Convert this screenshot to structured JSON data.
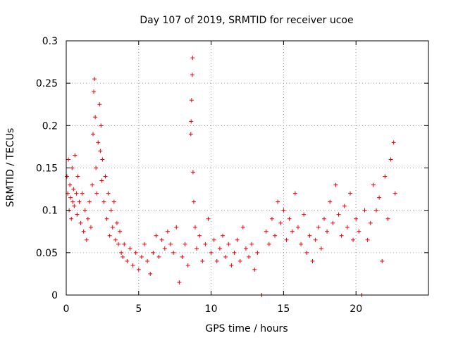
{
  "chart_data": {
    "type": "scatter",
    "title": "Day 107 of 2019, SRMTID for receiver ucoe",
    "xlabel": "GPS time / hours",
    "ylabel": "SRMTID / TECUs",
    "xlim": [
      0,
      25
    ],
    "ylim": [
      0,
      0.3
    ],
    "x_ticks": [
      0,
      5,
      10,
      15,
      20
    ],
    "x_tick_labels": [
      "0",
      "5",
      "10",
      "15",
      "20"
    ],
    "y_ticks": [
      0,
      0.05,
      0.1,
      0.15,
      0.2,
      0.25,
      0.3
    ],
    "y_tick_labels": [
      "0",
      "0.05",
      "0.1",
      "0.15",
      "0.2",
      "0.25",
      "0.3"
    ],
    "grid": true,
    "marker": "+",
    "color": "#e8000b",
    "series": [
      {
        "name": "SRMTID",
        "points": [
          [
            0.05,
            0.14
          ],
          [
            0.1,
            0.12
          ],
          [
            0.15,
            0.16
          ],
          [
            0.2,
            0.1
          ],
          [
            0.25,
            0.13
          ],
          [
            0.3,
            0.115
          ],
          [
            0.35,
            0.09
          ],
          [
            0.4,
            0.15
          ],
          [
            0.45,
            0.11
          ],
          [
            0.5,
            0.125
          ],
          [
            0.55,
            0.105
          ],
          [
            0.6,
            0.165
          ],
          [
            0.7,
            0.12
          ],
          [
            0.75,
            0.095
          ],
          [
            0.8,
            0.14
          ],
          [
            0.9,
            0.11
          ],
          [
            1.0,
            0.085
          ],
          [
            1.1,
            0.12
          ],
          [
            1.2,
            0.075
          ],
          [
            1.3,
            0.1
          ],
          [
            1.4,
            0.065
          ],
          [
            1.5,
            0.09
          ],
          [
            1.6,
            0.11
          ],
          [
            1.7,
            0.08
          ],
          [
            1.8,
            0.13
          ],
          [
            1.85,
            0.19
          ],
          [
            1.9,
            0.24
          ],
          [
            1.95,
            0.255
          ],
          [
            2.0,
            0.21
          ],
          [
            2.05,
            0.15
          ],
          [
            2.1,
            0.12
          ],
          [
            2.2,
            0.18
          ],
          [
            2.3,
            0.225
          ],
          [
            2.35,
            0.17
          ],
          [
            2.4,
            0.2
          ],
          [
            2.45,
            0.135
          ],
          [
            2.5,
            0.16
          ],
          [
            2.6,
            0.11
          ],
          [
            2.7,
            0.14
          ],
          [
            2.8,
            0.09
          ],
          [
            2.9,
            0.12
          ],
          [
            3.0,
            0.07
          ],
          [
            3.1,
            0.1
          ],
          [
            3.2,
            0.08
          ],
          [
            3.3,
            0.11
          ],
          [
            3.4,
            0.065
          ],
          [
            3.5,
            0.085
          ],
          [
            3.6,
            0.06
          ],
          [
            3.7,
            0.075
          ],
          [
            3.8,
            0.05
          ],
          [
            3.9,
            0.045
          ],
          [
            4.0,
            0.06
          ],
          [
            4.2,
            0.04
          ],
          [
            4.4,
            0.055
          ],
          [
            4.6,
            0.035
          ],
          [
            4.8,
            0.05
          ],
          [
            5.0,
            0.03
          ],
          [
            5.2,
            0.045
          ],
          [
            5.4,
            0.06
          ],
          [
            5.6,
            0.04
          ],
          [
            5.8,
            0.025
          ],
          [
            6.0,
            0.05
          ],
          [
            6.2,
            0.07
          ],
          [
            6.4,
            0.045
          ],
          [
            6.6,
            0.065
          ],
          [
            6.8,
            0.055
          ],
          [
            7.0,
            0.075
          ],
          [
            7.2,
            0.06
          ],
          [
            7.4,
            0.05
          ],
          [
            7.6,
            0.08
          ],
          [
            7.8,
            0.015
          ],
          [
            8.0,
            0.045
          ],
          [
            8.2,
            0.06
          ],
          [
            8.4,
            0.035
          ],
          [
            8.6,
            0.19
          ],
          [
            8.62,
            0.205
          ],
          [
            8.65,
            0.23
          ],
          [
            8.7,
            0.26
          ],
          [
            8.72,
            0.28
          ],
          [
            8.75,
            0.145
          ],
          [
            8.8,
            0.11
          ],
          [
            8.9,
            0.08
          ],
          [
            9.0,
            0.055
          ],
          [
            9.2,
            0.07
          ],
          [
            9.4,
            0.04
          ],
          [
            9.6,
            0.06
          ],
          [
            9.8,
            0.09
          ],
          [
            10.0,
            0.05
          ],
          [
            10.2,
            0.065
          ],
          [
            10.4,
            0.04
          ],
          [
            10.6,
            0.055
          ],
          [
            10.8,
            0.07
          ],
          [
            11.0,
            0.045
          ],
          [
            11.2,
            0.06
          ],
          [
            11.4,
            0.035
          ],
          [
            11.6,
            0.05
          ],
          [
            11.8,
            0.065
          ],
          [
            12.0,
            0.04
          ],
          [
            12.2,
            0.08
          ],
          [
            12.4,
            0.055
          ],
          [
            12.6,
            0.045
          ],
          [
            12.8,
            0.06
          ],
          [
            13.0,
            0.03
          ],
          [
            13.2,
            0.05
          ],
          [
            13.5,
            0.0
          ],
          [
            13.8,
            0.075
          ],
          [
            14.0,
            0.06
          ],
          [
            14.2,
            0.09
          ],
          [
            14.4,
            0.07
          ],
          [
            14.6,
            0.11
          ],
          [
            14.8,
            0.085
          ],
          [
            15.0,
            0.1
          ],
          [
            15.2,
            0.065
          ],
          [
            15.4,
            0.09
          ],
          [
            15.6,
            0.075
          ],
          [
            15.8,
            0.12
          ],
          [
            16.0,
            0.08
          ],
          [
            16.2,
            0.06
          ],
          [
            16.4,
            0.095
          ],
          [
            16.6,
            0.05
          ],
          [
            16.8,
            0.07
          ],
          [
            17.0,
            0.04
          ],
          [
            17.2,
            0.065
          ],
          [
            17.4,
            0.08
          ],
          [
            17.6,
            0.055
          ],
          [
            17.8,
            0.09
          ],
          [
            18.0,
            0.075
          ],
          [
            18.2,
            0.11
          ],
          [
            18.4,
            0.085
          ],
          [
            18.6,
            0.13
          ],
          [
            18.8,
            0.095
          ],
          [
            19.0,
            0.07
          ],
          [
            19.2,
            0.105
          ],
          [
            19.4,
            0.08
          ],
          [
            19.6,
            0.12
          ],
          [
            19.8,
            0.065
          ],
          [
            20.0,
            0.09
          ],
          [
            20.2,
            0.075
          ],
          [
            20.4,
            0.0
          ],
          [
            20.6,
            0.1
          ],
          [
            20.8,
            0.065
          ],
          [
            21.0,
            0.085
          ],
          [
            21.2,
            0.13
          ],
          [
            21.4,
            0.1
          ],
          [
            21.6,
            0.115
          ],
          [
            21.8,
            0.04
          ],
          [
            22.0,
            0.14
          ],
          [
            22.2,
            0.09
          ],
          [
            22.4,
            0.16
          ],
          [
            22.6,
            0.18
          ],
          [
            22.7,
            0.12
          ]
        ]
      }
    ]
  }
}
